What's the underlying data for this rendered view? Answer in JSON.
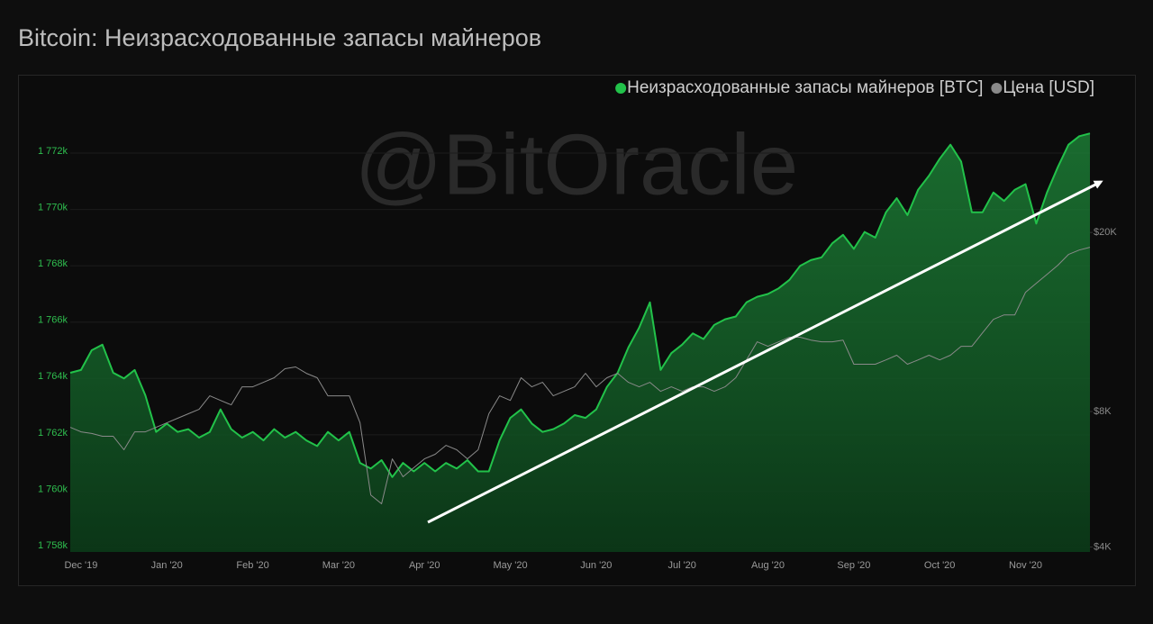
{
  "chart_data": {
    "type": "line",
    "title": "Bitcoin: Неизрасходованные запасы майнеров",
    "watermark": "@BitOracle",
    "categories": [
      null,
      "Dec '19",
      null,
      null,
      null,
      null,
      null,
      null,
      null,
      "Jan '20",
      null,
      null,
      null,
      null,
      null,
      null,
      null,
      "Feb '20",
      null,
      null,
      null,
      null,
      null,
      null,
      null,
      "Mar '20",
      null,
      null,
      null,
      null,
      null,
      null,
      null,
      "Apr '20",
      null,
      null,
      null,
      null,
      null,
      null,
      null,
      "May '20",
      null,
      null,
      null,
      null,
      null,
      null,
      null,
      "Jun '20",
      null,
      null,
      null,
      null,
      null,
      null,
      null,
      "Jul '20",
      null,
      null,
      null,
      null,
      null,
      null,
      null,
      "Aug '20",
      null,
      null,
      null,
      null,
      null,
      null,
      null,
      "Sep '20",
      null,
      null,
      null,
      null,
      null,
      null,
      null,
      "Oct '20",
      null,
      null,
      null,
      null,
      null,
      null,
      null,
      "Nov '20",
      null,
      null,
      null,
      null,
      null,
      null
    ],
    "series": [
      {
        "name": "Неизрасходованные запасы майнеров [BTC]",
        "color": "#22c24a",
        "values": [
          1764200,
          1764300,
          1765000,
          1765200,
          1764200,
          1764000,
          1764300,
          1763400,
          1762100,
          1762400,
          1762100,
          1762200,
          1761900,
          1762100,
          1762900,
          1762200,
          1761900,
          1762100,
          1761800,
          1762200,
          1761900,
          1762100,
          1761800,
          1761600,
          1762100,
          1761800,
          1762100,
          1761000,
          1760800,
          1761100,
          1760500,
          1761000,
          1760700,
          1761000,
          1760700,
          1761000,
          1760800,
          1761100,
          1760700,
          1760700,
          1761800,
          1762600,
          1762900,
          1762400,
          1762100,
          1762200,
          1762400,
          1762700,
          1762600,
          1762900,
          1763700,
          1764200,
          1765100,
          1765800,
          1766700,
          1764300,
          1764900,
          1765200,
          1765600,
          1765400,
          1765900,
          1766100,
          1766200,
          1766700,
          1766900,
          1767000,
          1767200,
          1767500,
          1768000,
          1768200,
          1768300,
          1768800,
          1769100,
          1768600,
          1769200,
          1769000,
          1769900,
          1770400,
          1769800,
          1770700,
          1771200,
          1771800,
          1772300,
          1771700,
          1769900,
          1769900,
          1770600,
          1770300,
          1770700,
          1770900,
          1769500,
          1770600,
          1771500,
          1772300,
          1772600,
          1772700
        ]
      },
      {
        "name": "Цена [USD]",
        "color": "#8a8a8a",
        "axis": "y2",
        "values": [
          7380,
          7210,
          7150,
          7050,
          7050,
          6580,
          7210,
          7210,
          7380,
          7550,
          7730,
          7910,
          8090,
          8670,
          8470,
          8280,
          9080,
          9080,
          9290,
          9510,
          9960,
          10050,
          9730,
          9510,
          8670,
          8670,
          8670,
          7550,
          5220,
          4990,
          6280,
          5730,
          6000,
          6280,
          6430,
          6730,
          6580,
          6280,
          6580,
          7910,
          8670,
          8470,
          9510,
          9080,
          9290,
          8670,
          8870,
          9080,
          9730,
          9080,
          9510,
          9730,
          9290,
          9080,
          9290,
          8870,
          9080,
          8870,
          9080,
          9080,
          8870,
          9080,
          9510,
          10420,
          11430,
          11170,
          11430,
          11700,
          11700,
          11530,
          11430,
          11430,
          11530,
          10190,
          10190,
          10190,
          10420,
          10670,
          10190,
          10420,
          10670,
          10420,
          10670,
          11170,
          11170,
          11970,
          12820,
          13120,
          13120,
          14730,
          15420,
          16140,
          16910,
          17870,
          18280,
          18540
        ]
      }
    ],
    "ylim": [
      1757840,
      1773600
    ],
    "yticks": [
      {
        "value": 1758000,
        "label": "1 758k"
      },
      {
        "value": 1760000,
        "label": "1 760k"
      },
      {
        "value": 1762000,
        "label": "1 762k"
      },
      {
        "value": 1764000,
        "label": "1 764k"
      },
      {
        "value": 1766000,
        "label": "1 766k"
      },
      {
        "value": 1768000,
        "label": "1 768k"
      },
      {
        "value": 1770000,
        "label": "1 770k"
      },
      {
        "value": 1772000,
        "label": "1 772k"
      }
    ],
    "y2lim": [
      3900,
      37800
    ],
    "y2log": true,
    "y2ticks": [
      {
        "value": 4000,
        "label": "$4K"
      },
      {
        "value": 8000,
        "label": "$8K"
      },
      {
        "value": 20000,
        "label": "$20K"
      }
    ],
    "grid": true,
    "legend": "top-right"
  }
}
